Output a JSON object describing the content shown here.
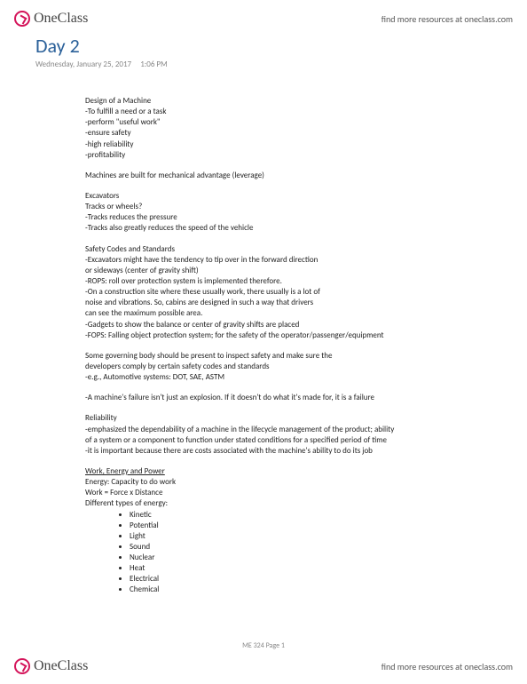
{
  "header": {
    "logo_text": "OneClass",
    "link_text": "find more resources at oneclass.com"
  },
  "doc": {
    "title": "Day 2",
    "date": "Wednesday, January 25, 2017",
    "time": "1:06 PM",
    "page_label": "ME 324 Page 1"
  },
  "notes": {
    "l1": "Design of a Machine",
    "l2": "-To fulfill a need or a task",
    "l3": "-perform \"useful work\"",
    "l4": "-ensure safety",
    "l5": "-high reliability",
    "l6": "-profitability",
    "l7": "Machines are built for mechanical advantage (leverage)",
    "l8": "Excavators",
    "l9": "Tracks or wheels?",
    "l10": "-Tracks reduces the pressure",
    "l11": "-Tracks also greatly reduces the speed of the vehicle",
    "l12": "Safety Codes and Standards",
    "l13": "-Excavators might have the tendency to tip over in the forward direction",
    "l14": "or sideways (center of gravity shift)",
    "l15": "-ROPS: roll over protection system is implemented therefore.",
    "l16": "-On a construction site where these usually work, there usually is a lot of",
    "l17": "noise and vibrations. So, cabins are designed in such a way that drivers",
    "l18": "can see the maximum possible area.",
    "l19": "-Gadgets to show the balance or center of gravity shifts are placed",
    "l20": "-FOPS: Falling object protection system; for the safety of the operator/passenger/equipment",
    "l21": "Some governing body should be present to inspect safety and make sure the",
    "l22": "developers comply by certain safety codes and standards",
    "l23": "-e.g., Automotive systems: DOT, SAE, ASTM",
    "l24": "-A machine's failure isn't just an explosion. If it doesn't do what it's made for, it is a failure",
    "l25": "Reliability",
    "l26": "-emphasized the dependability of a machine in the lifecycle management of the product; ability",
    "l27": "of a system or a component to function under stated conditions for a specified period of time",
    "l28": "-it is important because there are costs associated with the machine's ability to do its job",
    "l29": "Work, Energy and Power",
    "l30": "Energy: Capacity to do work",
    "l31": "Work = Force x Distance",
    "l32": "Different types of energy:"
  },
  "energy_types": [
    "Kinetic",
    "Potential",
    "Light",
    "Sound",
    "Nuclear",
    "Heat",
    "Electrical",
    "Chemical"
  ]
}
